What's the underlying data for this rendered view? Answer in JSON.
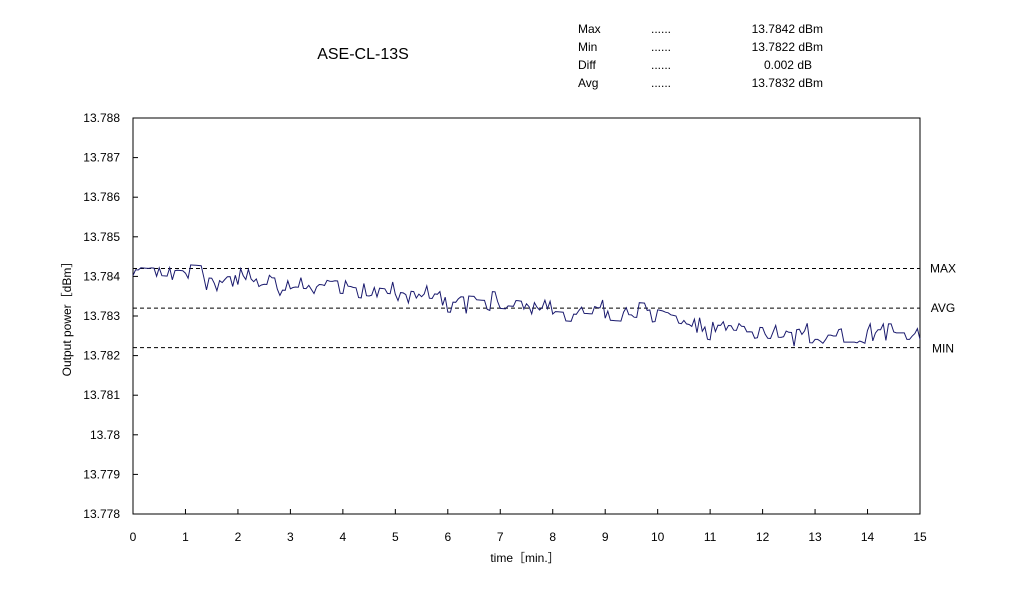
{
  "chart_data": {
    "type": "line",
    "title": "ASE-CL-13S",
    "xlabel": "time［min.］",
    "ylabel": "Output power［dBm］",
    "xlim": [
      0,
      15
    ],
    "ylim": [
      13.778,
      13.788
    ],
    "x_ticks": [
      "0",
      "1",
      "2",
      "3",
      "4",
      "5",
      "6",
      "7",
      "8",
      "9",
      "10",
      "11",
      "12",
      "13",
      "14",
      "15"
    ],
    "y_ticks": [
      "13.788",
      "13.787",
      "13.786",
      "13.785",
      "13.784",
      "13.783",
      "13.782",
      "13.781",
      "13.78",
      "13.779",
      "13.778"
    ],
    "grid": false,
    "stats": [
      {
        "label": "Max",
        "dots": "......",
        "value": "13.7842 dBm"
      },
      {
        "label": "Min",
        "dots": "......",
        "value": "13.7822 dBm"
      },
      {
        "label": "Diff",
        "dots": "......",
        "value": "0.002 dB"
      },
      {
        "label": "Avg",
        "dots": "......",
        "value": "13.7832 dBm"
      }
    ],
    "reference_lines": [
      {
        "label": "MAX",
        "value": 13.7842
      },
      {
        "label": "AVG",
        "value": 13.7832
      },
      {
        "label": "MIN",
        "value": 13.7822
      }
    ],
    "series": [
      {
        "color": "#1a1a6e",
        "trend": [
          [
            0,
            13.7841
          ],
          [
            2,
            13.7839
          ],
          [
            4,
            13.7837
          ],
          [
            6,
            13.7834
          ],
          [
            8,
            13.7832
          ],
          [
            10,
            13.783
          ],
          [
            11,
            13.7827
          ],
          [
            12,
            13.7826
          ],
          [
            13,
            13.7825
          ],
          [
            15,
            13.7825
          ]
        ],
        "noise_amplitude": 0.00025,
        "sample_interval_min": 0.05
      }
    ]
  }
}
